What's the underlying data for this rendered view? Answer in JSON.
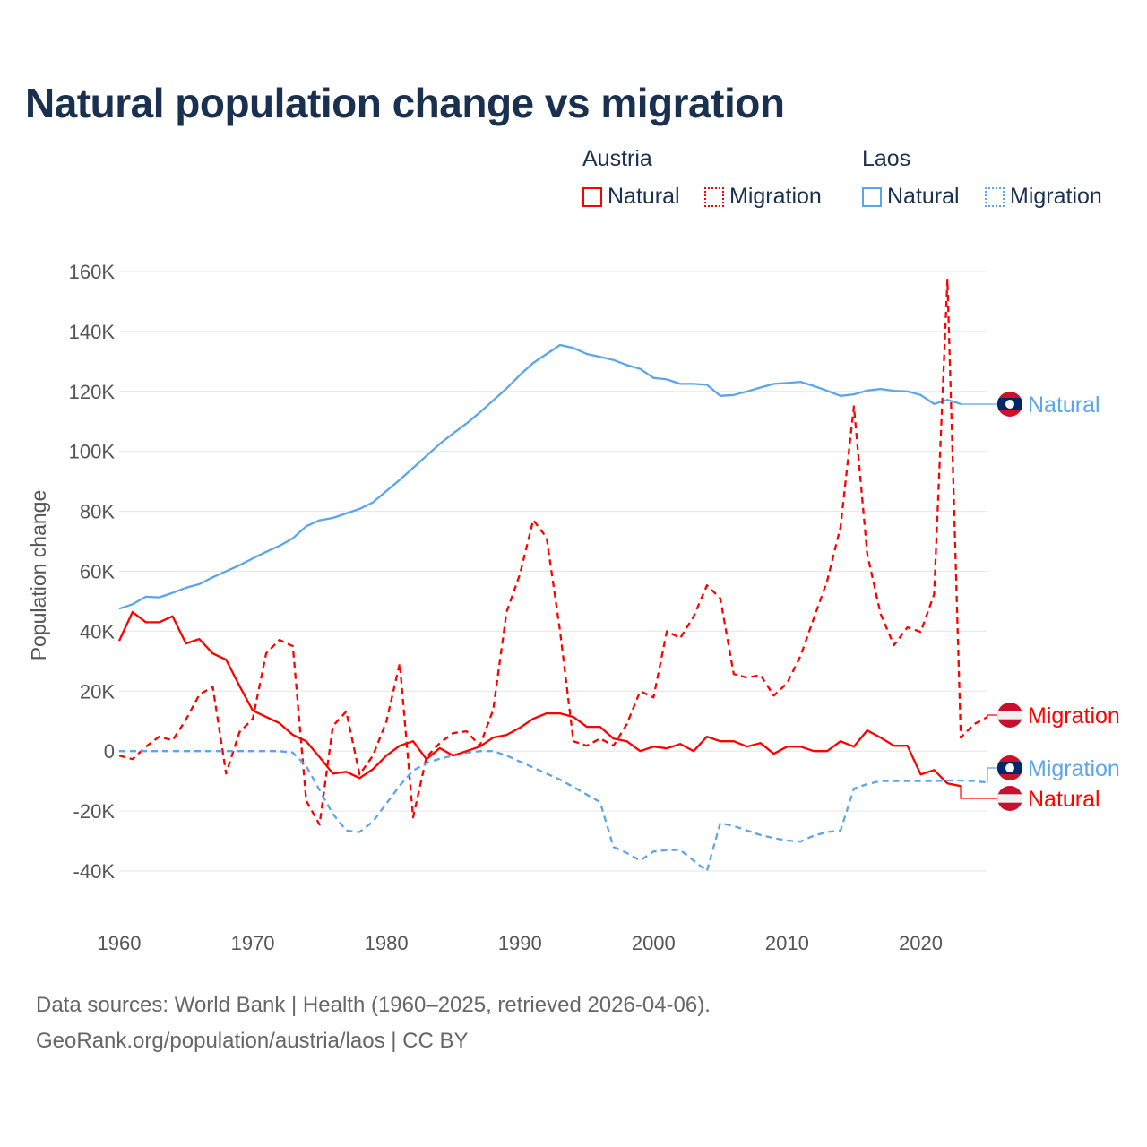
{
  "title": "Natural population change vs migration",
  "legend": {
    "groups": [
      {
        "name": "Austria",
        "items": [
          "Natural",
          "Migration"
        ],
        "color": "#ff0000"
      },
      {
        "name": "Laos",
        "items": [
          "Natural",
          "Migration"
        ],
        "color": "#5aa5ec"
      }
    ]
  },
  "source": {
    "line1": "Data sources: World Bank | Health (1960–2025, retrieved 2026-04-06).",
    "line2": "GeoRank.org/population/austria/laos | CC BY"
  },
  "chart_data": {
    "type": "line",
    "title": "Natural population change vs migration",
    "xlabel": "",
    "ylabel": "Population change",
    "xlim": [
      1960,
      2025
    ],
    "ylim": [
      -40000,
      160000
    ],
    "x_ticks": [
      "1960",
      "1970",
      "1980",
      "1990",
      "2000",
      "2010",
      "2020"
    ],
    "y_ticks": [
      "160K",
      "140K",
      "120K",
      "100K",
      "80K",
      "60K",
      "40K",
      "20K",
      "0",
      "-20K",
      "-40K"
    ],
    "grid": true,
    "x": [
      1960,
      1961,
      1962,
      1963,
      1964,
      1965,
      1966,
      1967,
      1968,
      1969,
      1970,
      1971,
      1972,
      1973,
      1974,
      1975,
      1976,
      1977,
      1978,
      1979,
      1980,
      1981,
      1982,
      1983,
      1984,
      1985,
      1986,
      1987,
      1988,
      1989,
      1990,
      1991,
      1992,
      1993,
      1994,
      1995,
      1996,
      1997,
      1998,
      1999,
      2000,
      2001,
      2002,
      2003,
      2004,
      2005,
      2006,
      2007,
      2008,
      2009,
      2010,
      2011,
      2012,
      2013,
      2014,
      2015,
      2016,
      2017,
      2018,
      2019,
      2020,
      2021,
      2022,
      2023,
      2024,
      2025
    ],
    "series": [
      {
        "name": "Laos Natural",
        "country": "Laos",
        "kind": "Natural",
        "color": "#5aa5ec",
        "dashed": false,
        "end_label": "Natural",
        "values": [
          47500,
          49000,
          51500,
          51300,
          52800,
          54500,
          55700,
          58000,
          60000,
          62000,
          64300,
          66500,
          68500,
          71000,
          75000,
          77000,
          77800,
          79300,
          80800,
          83000,
          86800,
          90500,
          94500,
          98500,
          102500,
          106000,
          109300,
          113000,
          117000,
          121000,
          125500,
          129500,
          132500,
          135500,
          134500,
          132500,
          131500,
          130500,
          128800,
          127500,
          124500,
          124000,
          122500,
          122500,
          122200,
          118500,
          118800,
          120000,
          121300,
          122500,
          122800,
          123200,
          121800,
          120200,
          118500,
          119000,
          120300,
          120800,
          120200,
          120000,
          118800,
          115800,
          117200,
          115800,
          null,
          null
        ]
      },
      {
        "name": "Austria Migration",
        "country": "Austria",
        "kind": "Migration",
        "color": "#ff0000",
        "dashed": true,
        "end_label": "Migration",
        "values": [
          -1500,
          -2700,
          1500,
          4800,
          3600,
          10500,
          18800,
          21500,
          -7500,
          6300,
          10800,
          32600,
          37100,
          35000,
          -16500,
          -24500,
          8400,
          13200,
          -7800,
          -1500,
          9900,
          29300,
          -22100,
          -2000,
          2700,
          6000,
          6600,
          1800,
          13800,
          46400,
          59000,
          77100,
          71200,
          40000,
          3300,
          1800,
          4200,
          1800,
          9000,
          20000,
          17900,
          40000,
          37700,
          44800,
          55300,
          51000,
          25700,
          24500,
          25400,
          18500,
          22700,
          31700,
          44300,
          56800,
          74800,
          115000,
          65800,
          45800,
          35300,
          41300,
          39800,
          52300,
          157300,
          4500,
          9000,
          11400
        ]
      },
      {
        "name": "Laos Migration",
        "country": "Laos",
        "kind": "Migration",
        "color": "#5aa5ec",
        "dashed": true,
        "end_label": "Migration",
        "values": [
          0,
          0,
          0,
          0,
          0,
          0,
          0,
          0,
          0,
          0,
          0,
          0,
          0,
          -500,
          -5000,
          -13000,
          -21000,
          -26500,
          -27000,
          -23500,
          -17500,
          -11500,
          -6500,
          -4000,
          -2500,
          -1500,
          -500,
          0,
          0,
          -1500,
          -3500,
          -5500,
          -7500,
          -9500,
          -12000,
          -14500,
          -17000,
          -32000,
          -34000,
          -36500,
          -33500,
          -33000,
          -33000,
          -36500,
          -40000,
          -24000,
          -25000,
          -26500,
          -28000,
          -29000,
          -29800,
          -30200,
          -28200,
          -27000,
          -26500,
          -12500,
          -11000,
          -10000,
          -10000,
          -10000,
          -10000,
          -10000,
          -9800,
          -9800,
          -10000,
          -10500
        ]
      },
      {
        "name": "Austria Natural",
        "country": "Austria",
        "kind": "Natural",
        "color": "#ff0000",
        "dashed": false,
        "end_label": "Natural",
        "values": [
          36800,
          46400,
          43000,
          43000,
          45000,
          35900,
          37400,
          32600,
          30500,
          21800,
          13500,
          11400,
          9300,
          5400,
          3300,
          -2000,
          -7500,
          -6900,
          -9000,
          -6000,
          -1500,
          1800,
          3300,
          -2700,
          1000,
          -1500,
          0,
          1500,
          4500,
          5400,
          7800,
          10800,
          12600,
          12600,
          11400,
          8100,
          8100,
          4200,
          3300,
          0,
          1500,
          900,
          2400,
          0,
          4800,
          3300,
          3300,
          1500,
          2700,
          -900,
          1500,
          1500,
          0,
          0,
          3300,
          1500,
          6900,
          4500,
          1800,
          1800,
          -7800,
          -6300,
          -10800,
          -11700,
          null,
          null
        ]
      }
    ]
  }
}
